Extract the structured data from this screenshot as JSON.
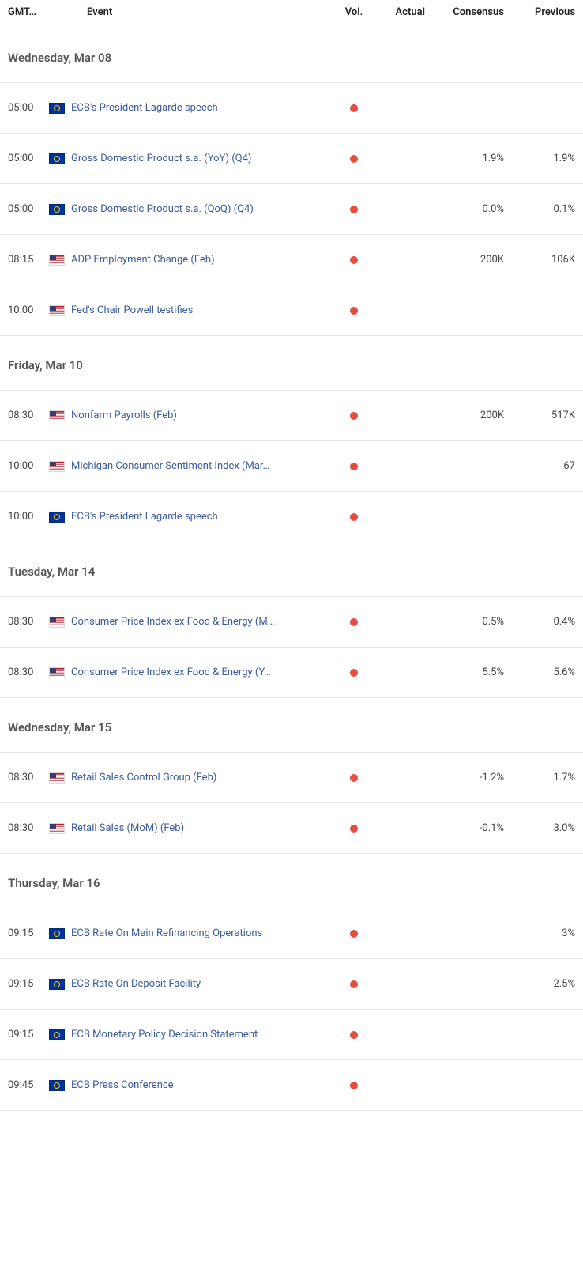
{
  "colors": {
    "vol_dot": "#e74c3c",
    "event_link": "#3a5a9a",
    "border": "#e5e5e5",
    "text": "#333333",
    "header_text": "#555555"
  },
  "headers": {
    "time": "GMT…",
    "event": "Event",
    "vol": "Vol.",
    "actual": "Actual",
    "consensus": "Consensus",
    "previous": "Previous"
  },
  "groups": [
    {
      "date": "Wednesday, Mar 08",
      "rows": [
        {
          "time": "05:00",
          "flag": "eu",
          "event": "ECB's President Lagarde speech",
          "vol": "high",
          "actual": "",
          "consensus": "",
          "previous": ""
        },
        {
          "time": "05:00",
          "flag": "eu",
          "event": "Gross Domestic Product s.a. (YoY) (Q4)",
          "vol": "high",
          "actual": "",
          "consensus": "1.9%",
          "previous": "1.9%"
        },
        {
          "time": "05:00",
          "flag": "eu",
          "event": "Gross Domestic Product s.a. (QoQ) (Q4)",
          "vol": "high",
          "actual": "",
          "consensus": "0.0%",
          "previous": "0.1%"
        },
        {
          "time": "08:15",
          "flag": "us",
          "event": "ADP Employment Change (Feb)",
          "vol": "high",
          "actual": "",
          "consensus": "200K",
          "previous": "106K"
        },
        {
          "time": "10:00",
          "flag": "us",
          "event": "Fed's Chair Powell testifies",
          "vol": "high",
          "actual": "",
          "consensus": "",
          "previous": ""
        }
      ]
    },
    {
      "date": "Friday, Mar 10",
      "rows": [
        {
          "time": "08:30",
          "flag": "us",
          "event": "Nonfarm Payrolls (Feb)",
          "vol": "high",
          "actual": "",
          "consensus": "200K",
          "previous": "517K"
        },
        {
          "time": "10:00",
          "flag": "us",
          "event": "Michigan Consumer Sentiment Index (Mar…",
          "vol": "high",
          "actual": "",
          "consensus": "",
          "previous": "67"
        },
        {
          "time": "10:00",
          "flag": "eu",
          "event": "ECB's President Lagarde speech",
          "vol": "high",
          "actual": "",
          "consensus": "",
          "previous": ""
        }
      ]
    },
    {
      "date": "Tuesday, Mar 14",
      "rows": [
        {
          "time": "08:30",
          "flag": "us",
          "event": "Consumer Price Index ex Food & Energy (M…",
          "vol": "high",
          "actual": "",
          "consensus": "0.5%",
          "previous": "0.4%"
        },
        {
          "time": "08:30",
          "flag": "us",
          "event": "Consumer Price Index ex Food & Energy (Y…",
          "vol": "high",
          "actual": "",
          "consensus": "5.5%",
          "previous": "5.6%"
        }
      ]
    },
    {
      "date": "Wednesday, Mar 15",
      "rows": [
        {
          "time": "08:30",
          "flag": "us",
          "event": "Retail Sales Control Group (Feb)",
          "vol": "high",
          "actual": "",
          "consensus": "-1.2%",
          "previous": "1.7%"
        },
        {
          "time": "08:30",
          "flag": "us",
          "event": "Retail Sales (MoM) (Feb)",
          "vol": "high",
          "actual": "",
          "consensus": "-0.1%",
          "previous": "3.0%"
        }
      ]
    },
    {
      "date": "Thursday, Mar 16",
      "rows": [
        {
          "time": "09:15",
          "flag": "eu",
          "event": "ECB Rate On Main Refinancing Operations",
          "vol": "high",
          "actual": "",
          "consensus": "",
          "previous": "3%"
        },
        {
          "time": "09:15",
          "flag": "eu",
          "event": "ECB Rate On Deposit Facility",
          "vol": "high",
          "actual": "",
          "consensus": "",
          "previous": "2.5%"
        },
        {
          "time": "09:15",
          "flag": "eu",
          "event": "ECB Monetary Policy Decision Statement",
          "vol": "high",
          "actual": "",
          "consensus": "",
          "previous": ""
        },
        {
          "time": "09:45",
          "flag": "eu",
          "event": "ECB Press Conference",
          "vol": "high",
          "actual": "",
          "consensus": "",
          "previous": ""
        }
      ]
    }
  ]
}
